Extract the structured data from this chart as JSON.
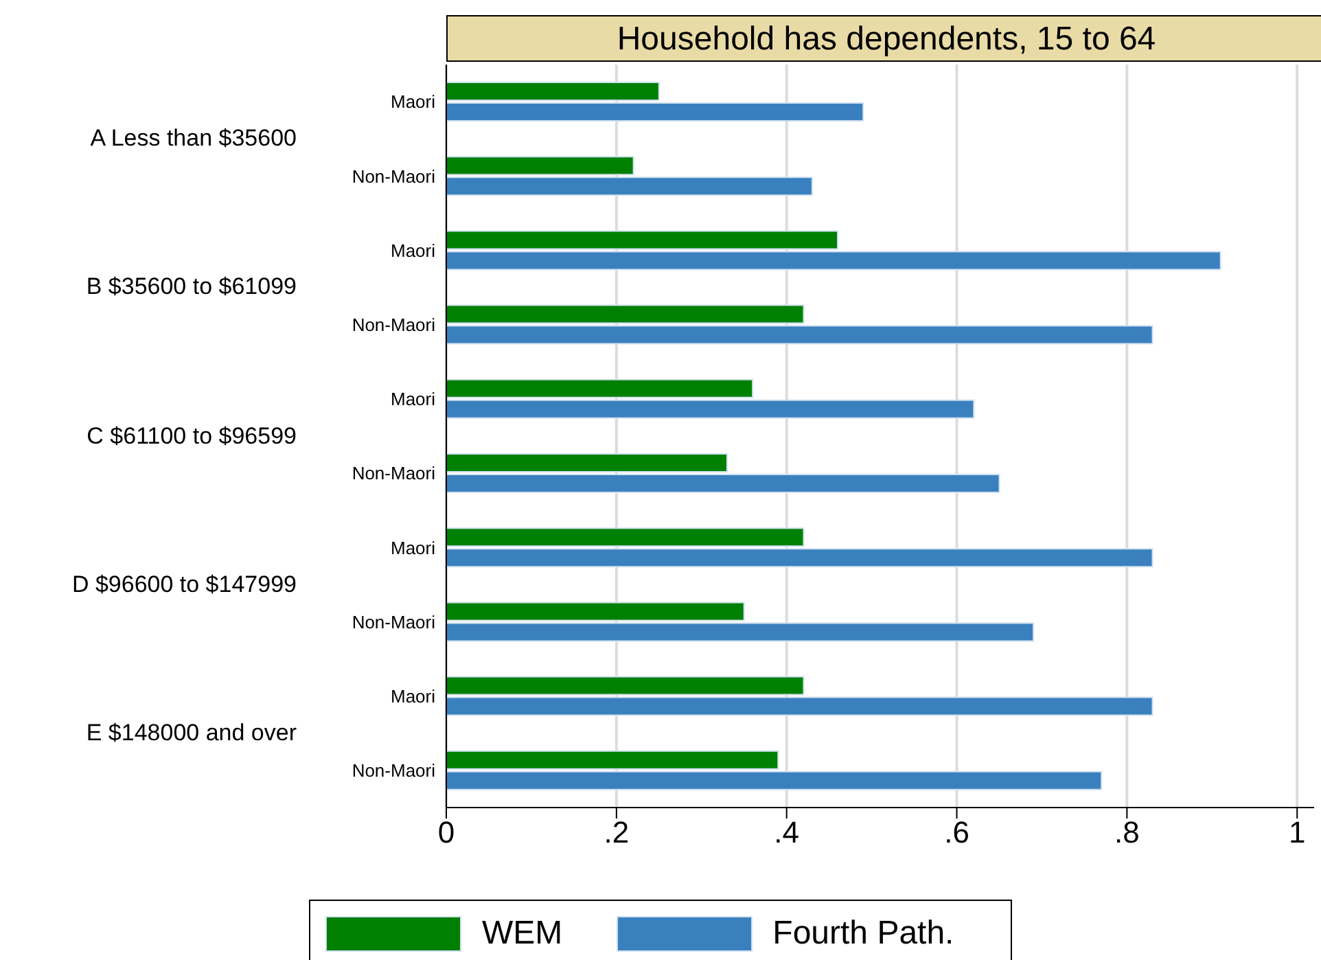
{
  "chart_data": {
    "type": "bar",
    "orientation": "horizontal",
    "title": "Household has dependents, 15 to 64",
    "categories": [
      "Maori",
      "Non-Maori",
      "Maori",
      "Non-Maori",
      "Maori",
      "Non-Maori",
      "Maori",
      "Non-Maori",
      "Maori",
      "Non-Maori"
    ],
    "annotations": [
      "A Less than $35600",
      "B $35600 to $61099",
      "C $61100 to $96599",
      "D $96600 to $147999",
      "E $148000 and over"
    ],
    "series": [
      {
        "name": "WEM",
        "color": "#008000",
        "values": [
          0.25,
          0.22,
          0.46,
          0.42,
          0.36,
          0.33,
          0.42,
          0.35,
          0.42,
          0.39
        ]
      },
      {
        "name": "Fourth Path.",
        "color": "#3a80bf",
        "values": [
          0.49,
          0.43,
          0.91,
          0.83,
          0.62,
          0.65,
          0.83,
          0.69,
          0.83,
          0.77
        ]
      }
    ],
    "xlim": [
      0,
      1.02
    ],
    "xticks": [
      0,
      {
        "value": 0.2,
        "label": ".2"
      },
      {
        "value": 0.4,
        "label": ".4"
      },
      {
        "value": 0.6,
        "label": ".6"
      },
      {
        "value": 0.8,
        "label": ".8"
      },
      1
    ],
    "grid": "x",
    "legend": "bottom"
  }
}
